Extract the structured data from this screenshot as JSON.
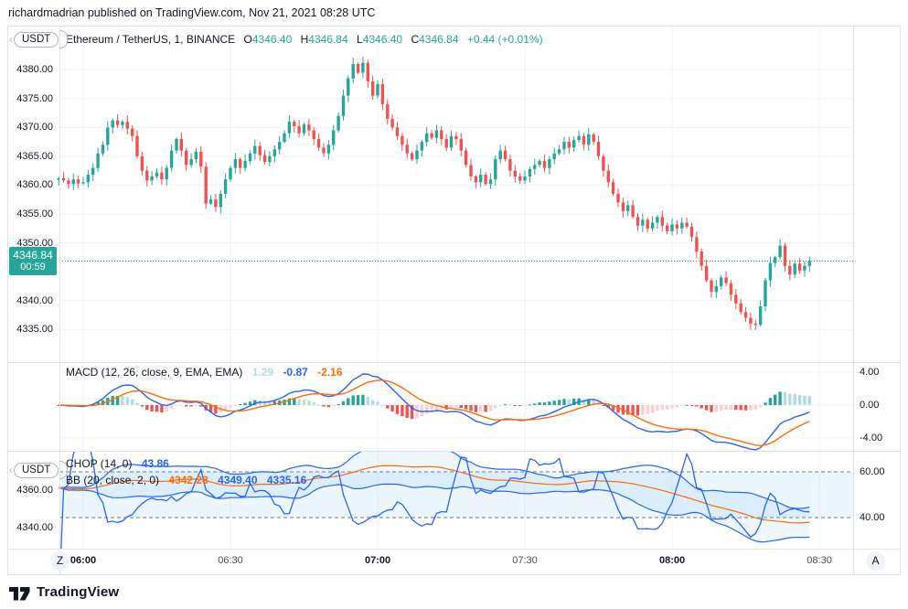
{
  "meta": {
    "publish_line": "richardmadrian published on TradingView.com, Nov 21, 2021 08:28 UTC"
  },
  "footer": {
    "brand": "TradingView"
  },
  "main_pane": {
    "pill": "USDT",
    "legend": {
      "title": "Ethereum / TetherUS, 1, BINANCE",
      "o_label": "O",
      "o": "4346.40",
      "h_label": "H",
      "h": "4346.84",
      "l_label": "L",
      "l": "4346.40",
      "c_label": "C",
      "c": "4346.84",
      "change": "+0.44 (+0.01%)"
    },
    "price_badge": {
      "price": "4346.84",
      "countdown": "00:59"
    }
  },
  "macd_pane": {
    "legend_title": "MACD (12, 26, close, 9, EMA, EMA)",
    "hist_value": "1.29",
    "macd_value": "-0.87",
    "signal_value": "-2.16"
  },
  "chop_pane": {
    "pill": "USDT",
    "chop_title": "CHOP (14, 0)",
    "chop_value": "43.86",
    "bb_title": "BB (20, close, 2, 0)",
    "bb_basis": "4342.28",
    "bb_upper": "4349.40",
    "bb_lower": "4335.16"
  },
  "time_axis": {
    "zoom_button": "Z",
    "a_button": "A",
    "labels": [
      {
        "text": "06:00",
        "minute": 0,
        "bold": true
      },
      {
        "text": "06:30",
        "minute": 30,
        "bold": false
      },
      {
        "text": "07:00",
        "minute": 60,
        "bold": true
      },
      {
        "text": "07:30",
        "minute": 90,
        "bold": false
      },
      {
        "text": "08:00",
        "minute": 120,
        "bold": true
      },
      {
        "text": "08:30",
        "minute": 150,
        "bold": false
      }
    ]
  },
  "chart_data": {
    "type": "candlestick",
    "symbol": "Ethereum / TetherUS",
    "interval": "1",
    "exchange": "BINANCE",
    "title": "Ethereum / TetherUS, 1, BINANCE",
    "x_range": [
      "05:55",
      "08:28"
    ],
    "start_minute_offset": -5,
    "price_axis_ticks": [
      {
        "label": "4380.00",
        "price": 4380
      },
      {
        "label": "4375.00",
        "price": 4375
      },
      {
        "label": "4370.00",
        "price": 4370
      },
      {
        "label": "4365.00",
        "price": 4365
      },
      {
        "label": "4360.00",
        "price": 4360
      },
      {
        "label": "4355.00",
        "price": 4355
      },
      {
        "label": "4350.00",
        "price": 4350
      },
      {
        "label": "4340.00",
        "price": 4340
      },
      {
        "label": "4335.00",
        "price": 4335
      }
    ],
    "current_price": 4346.84,
    "ohlc_last": {
      "open": 4346.4,
      "high": 4346.84,
      "low": 4346.4,
      "close": 4346.84,
      "change": 0.44,
      "change_pct": 0.01
    },
    "candles_close": [
      4361.2,
      4360.8,
      4360.2,
      4361.0,
      4360.3,
      4360.5,
      4361.8,
      4363.0,
      4365.5,
      4367.0,
      4370.0,
      4371.2,
      4370.4,
      4371.0,
      4369.8,
      4368.5,
      4365.0,
      4362.5,
      4360.8,
      4361.5,
      4362.2,
      4361.0,
      4363.0,
      4366.0,
      4368.0,
      4366.0,
      4363.5,
      4364.5,
      4365.8,
      4363.2,
      4356.8,
      4357.5,
      4356.2,
      4358.5,
      4361.0,
      4363.0,
      4364.5,
      4363.0,
      4364.2,
      4365.5,
      4366.8,
      4365.2,
      4364.0,
      4365.0,
      4366.2,
      4367.5,
      4369.0,
      4371.0,
      4370.2,
      4369.0,
      4370.5,
      4369.5,
      4368.0,
      4366.5,
      4365.5,
      4367.0,
      4369.5,
      4372.0,
      4375.5,
      4378.5,
      4381.0,
      4379.5,
      4381.2,
      4378.0,
      4375.5,
      4377.5,
      4374.0,
      4371.5,
      4370.0,
      4368.5,
      4367.0,
      4365.5,
      4364.5,
      4366.0,
      4367.5,
      4369.0,
      4368.2,
      4369.5,
      4368.0,
      4366.5,
      4368.5,
      4368.0,
      4366.0,
      4363.5,
      4361.5,
      4360.5,
      4361.8,
      4360.2,
      4361.0,
      4364.5,
      4366.0,
      4364.5,
      4362.5,
      4361.5,
      4360.8,
      4361.5,
      4362.8,
      4363.5,
      4364.2,
      4363.0,
      4364.5,
      4365.5,
      4366.2,
      4367.5,
      4366.5,
      4367.8,
      4368.5,
      4367.0,
      4368.8,
      4367.5,
      4365.0,
      4362.5,
      4360.5,
      4358.5,
      4357.0,
      4355.5,
      4356.5,
      4354.5,
      4353.0,
      4354.0,
      4352.5,
      4353.5,
      4354.5,
      4353.0,
      4352.0,
      4353.2,
      4352.5,
      4353.5,
      4352.8,
      4351.0,
      4348.5,
      4346.0,
      4343.5,
      4341.5,
      4342.5,
      4344.0,
      4343.0,
      4341.0,
      4339.5,
      4338.0,
      4337.0,
      4336.0,
      4335.8,
      4339.0,
      4343.5,
      4346.5,
      4347.5,
      4349.5,
      4346.0,
      4344.5,
      4346.4,
      4345.2,
      4346.0,
      4346.84
    ],
    "indicators": {
      "macd": {
        "params": [
          12,
          26,
          "close",
          9,
          "EMA",
          "EMA"
        ],
        "last_hist": 1.29,
        "last_macd": -0.87,
        "last_signal": -2.16,
        "axis_ticks": [
          {
            "label": "4.00",
            "v": 4
          },
          {
            "label": "0.00",
            "v": 0
          },
          {
            "label": "-4.00",
            "v": -4
          }
        ]
      },
      "chop": {
        "params": [
          14,
          0
        ],
        "last_value": 43.86,
        "band_upper": 60,
        "band_lower": 40,
        "axis_ticks": [
          {
            "label": "60.00",
            "v": 60
          },
          {
            "label": "40.00",
            "v": 40
          }
        ]
      },
      "bb": {
        "params": [
          20,
          "close",
          2,
          0
        ],
        "last_basis": 4342.28,
        "last_upper": 4349.4,
        "last_lower": 4335.16,
        "axis_ticks": [
          {
            "label": "4360.00",
            "p": 4360
          },
          {
            "label": "4340.00",
            "p": 4340
          }
        ]
      }
    },
    "colors": {
      "up": "#26a69a",
      "down": "#ef5350",
      "hist_grow_above": "#26a69a",
      "hist_fall_above": "#b2dfdb",
      "hist_fall_below": "#ef5350",
      "hist_grow_below": "#ffcdd2",
      "macd_line": "#2962ff",
      "signal_line": "#ff6d00",
      "bb_line": "#2962ff",
      "bb_basis": "#ff6d00",
      "bb_fill": "rgba(33,150,243,0.08)",
      "chop_line": "#2962ff",
      "chop_band_fill": "rgba(33,150,243,0.09)",
      "band_dash": "#787b86",
      "grid": "#f0f3fa",
      "separator": "#e0e3eb",
      "price_line": "#26a69a"
    },
    "legend_position": "top-left",
    "grid": true
  }
}
